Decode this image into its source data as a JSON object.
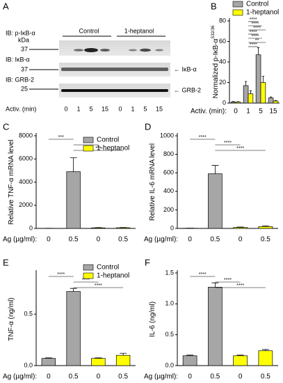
{
  "blot": {
    "panel": "A",
    "rows": [
      {
        "label": "IB: p-IκB-α",
        "marker": "37",
        "unit": "kDa"
      },
      {
        "label": "IB: IκB-α",
        "marker": "37",
        "arrow": "← IκB-α"
      },
      {
        "label": "IB: GRB-2",
        "marker": "25",
        "arrow": "← GRB-2"
      }
    ],
    "groups": [
      "Control",
      "1-heptanol"
    ],
    "lane_axis": "Activ. (min)",
    "lanes": [
      "0",
      "1",
      "5",
      "15",
      "0",
      "1",
      "5",
      "15"
    ]
  },
  "chart_data": [
    {
      "type": "bar",
      "panel": "B",
      "ylabel": "Normalized p-IκB-α",
      "ylabel_sup": "S32/36",
      "xlabel": "Activ. (min):",
      "categories": [
        "0",
        "1",
        "5",
        "15"
      ],
      "series": [
        {
          "name": "Control",
          "color": "#a6a6a6",
          "values": [
            1,
            17,
            47,
            5
          ],
          "errors": [
            0.5,
            4,
            7,
            1
          ]
        },
        {
          "name": "1-heptanol",
          "color": "#ffff00",
          "values": [
            1,
            9,
            20,
            2
          ],
          "errors": [
            0.3,
            3,
            6,
            0.5
          ]
        }
      ],
      "ylim": [
        0,
        80
      ],
      "yticks": [
        0,
        20,
        40,
        60,
        80
      ],
      "legend": "above",
      "annotations": [
        "****",
        "****",
        "****",
        "****",
        "****",
        "**",
        "****"
      ]
    },
    {
      "type": "bar",
      "panel": "C",
      "ylabel": "Relative TNF-α mRNA level",
      "xlabel": "Ag (µg/ml):",
      "categories": [
        "0",
        "0.5",
        "0",
        "0.5"
      ],
      "series": [
        {
          "name": "Control",
          "color": "#a6a6a6",
          "values": [
            10,
            4900,
            null,
            null
          ],
          "errors": [
            5,
            1200,
            null,
            null
          ]
        },
        {
          "name": "1-heptanol",
          "color": "#ffff00",
          "values": [
            null,
            null,
            50,
            60
          ],
          "errors": [
            null,
            null,
            20,
            20
          ]
        }
      ],
      "ylim": [
        0,
        8000
      ],
      "yticks": [
        0,
        2000,
        4000,
        6000,
        8000
      ],
      "legend": "upper right",
      "annotations": [
        "***",
        "***",
        "***"
      ]
    },
    {
      "type": "bar",
      "panel": "D",
      "ylabel": "Relative IL-6 mRNA level",
      "xlabel": "Ag (µg/ml):",
      "categories": [
        "0",
        "0.5",
        "0",
        "0.5"
      ],
      "series": [
        {
          "name": "Control",
          "color": "#a6a6a6",
          "values": [
            2,
            590,
            null,
            null
          ],
          "errors": [
            1,
            90,
            null,
            null
          ]
        },
        {
          "name": "1-heptanol",
          "color": "#ffff00",
          "values": [
            null,
            null,
            10,
            20
          ],
          "errors": [
            null,
            null,
            5,
            8
          ]
        }
      ],
      "ylim": [
        0,
        1000
      ],
      "yticks": [
        0,
        200,
        400,
        600,
        800,
        1000
      ],
      "annotations": [
        "****",
        "****",
        "****"
      ]
    },
    {
      "type": "bar",
      "panel": "E",
      "ylabel": "TNF-α (ng/ml)",
      "xlabel": "Ag (µg/ml):",
      "categories": [
        "0",
        "0.5",
        "0",
        "0.5"
      ],
      "series": [
        {
          "name": "Control",
          "color": "#a6a6a6",
          "values": [
            0.07,
            0.72,
            null,
            null
          ],
          "errors": [
            0.005,
            0.03,
            null,
            null
          ]
        },
        {
          "name": "1-heptanol",
          "color": "#ffff00",
          "values": [
            null,
            null,
            0.07,
            0.1
          ],
          "errors": [
            null,
            null,
            0.005,
            0.02
          ]
        }
      ],
      "ylim": [
        0,
        0.9
      ],
      "yticks": [
        {
          "value": 0,
          "label": "0.0"
        },
        0.5
      ],
      "legend": "above",
      "annotations": [
        "****",
        "****",
        "****"
      ]
    },
    {
      "type": "bar",
      "panel": "F",
      "ylabel": "IL-6 (ng/ml)",
      "xlabel": "Ag (µg/ml):",
      "categories": [
        "0",
        "0.5",
        "0",
        "0.5"
      ],
      "series": [
        {
          "name": "Control",
          "color": "#a6a6a6",
          "values": [
            0.16,
            1.27,
            null,
            null
          ],
          "errors": [
            0.01,
            0.07,
            null,
            null
          ]
        },
        {
          "name": "1-heptanol",
          "color": "#ffff00",
          "values": [
            null,
            null,
            0.16,
            0.24
          ],
          "errors": [
            null,
            null,
            0.01,
            0.02
          ]
        }
      ],
      "ylim": [
        0,
        1.5
      ],
      "yticks": [
        {
          "value": 0,
          "label": "0.0"
        },
        0.5,
        {
          "value": 1,
          "label": "1.0"
        },
        1.5
      ],
      "annotations": [
        "****",
        "****",
        "****"
      ]
    }
  ]
}
